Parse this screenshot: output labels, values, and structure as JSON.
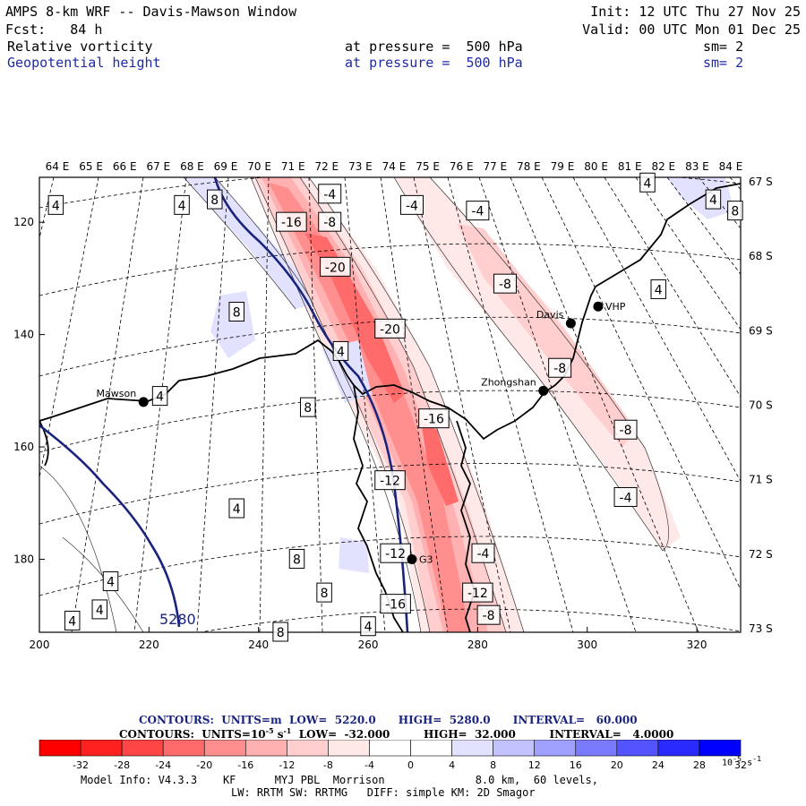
{
  "header": {
    "title": "AMPS 8-km WRF -- Davis-Mawson Window",
    "init": "Init: 12 UTC Thu 27 Nov 25",
    "fcst": "Fcst:   84 h",
    "valid": "Valid: 00 UTC Mon 01 Dec 25",
    "field1_name": "Relative vorticity",
    "field1_level": "at pressure =  500 hPa",
    "field1_sm": "sm= 2",
    "field2_name": "Geopotential height",
    "field2_level": "at pressure =  500 hPa",
    "field2_sm": "sm= 2"
  },
  "colors": {
    "frame": "#000000",
    "height_contour": "#1a237e",
    "coast": "#000000",
    "negative_strong": "#ff0000",
    "positive_strong": "#0000ff"
  },
  "chart_data": {
    "type": "contour-map",
    "title": "AMPS 8-km WRF -- Davis-Mawson Window",
    "xlim": [
      200,
      328
    ],
    "ylim": [
      112,
      193
    ],
    "x_ticks": [
      200,
      220,
      240,
      260,
      280,
      300,
      320
    ],
    "y_ticks": [
      120,
      140,
      160,
      180
    ],
    "longitude_labels": [
      "64 E",
      "65 E",
      "66 E",
      "67 E",
      "68 E",
      "69 E",
      "70 E",
      "71 E",
      "72 E",
      "73 E",
      "74 E",
      "75 E",
      "76 E",
      "77 E",
      "78 E",
      "79 E",
      "80 E",
      "81 E",
      "82 E",
      "83 E",
      "84 E"
    ],
    "latitude_labels": [
      "67 S",
      "68 S",
      "69 S",
      "70 S",
      "71 S",
      "72 S",
      "73 S"
    ],
    "stations": [
      {
        "name": "Mawson",
        "x": 219,
        "y": 152
      },
      {
        "name": "Davis",
        "x": 297,
        "y": 138
      },
      {
        "name": "VHP",
        "x": 302,
        "y": 135
      },
      {
        "name": "Zhongshan",
        "x": 292,
        "y": 150
      },
      {
        "name": "G3",
        "x": 268,
        "y": 180
      }
    ],
    "vorticity_labels": [
      {
        "text": "-4",
        "x": 253,
        "y": 115
      },
      {
        "text": "-16",
        "x": 246,
        "y": 120
      },
      {
        "text": "-8",
        "x": 253,
        "y": 120
      },
      {
        "text": "-20",
        "x": 254,
        "y": 128
      },
      {
        "text": "-20",
        "x": 264,
        "y": 139
      },
      {
        "text": "-16",
        "x": 272,
        "y": 155
      },
      {
        "text": "-12",
        "x": 264,
        "y": 166
      },
      {
        "text": "-4",
        "x": 268,
        "y": 117
      },
      {
        "text": "-4",
        "x": 280,
        "y": 118
      },
      {
        "text": "-8",
        "x": 285,
        "y": 131
      },
      {
        "text": "-8",
        "x": 295,
        "y": 146
      },
      {
        "text": "-8",
        "x": 307,
        "y": 157
      },
      {
        "text": "-4",
        "x": 307,
        "y": 169
      },
      {
        "text": "-16",
        "x": 265,
        "y": 188
      },
      {
        "text": "-12",
        "x": 280,
        "y": 186
      },
      {
        "text": "-8",
        "x": 282,
        "y": 190
      },
      {
        "text": "-4",
        "x": 281,
        "y": 179
      },
      {
        "text": "-12",
        "x": 265,
        "y": 179
      },
      {
        "text": "4",
        "x": 203,
        "y": 117
      },
      {
        "text": "4",
        "x": 226,
        "y": 117
      },
      {
        "text": "8",
        "x": 232,
        "y": 116
      },
      {
        "text": "8",
        "x": 236,
        "y": 136
      },
      {
        "text": "4",
        "x": 255,
        "y": 143
      },
      {
        "text": "4",
        "x": 222,
        "y": 151
      },
      {
        "text": "8",
        "x": 249,
        "y": 153
      },
      {
        "text": "4",
        "x": 236,
        "y": 171
      },
      {
        "text": "8",
        "x": 247,
        "y": 180
      },
      {
        "text": "4",
        "x": 213,
        "y": 184
      },
      {
        "text": "4",
        "x": 211,
        "y": 189
      },
      {
        "text": "4",
        "x": 206,
        "y": 191
      },
      {
        "text": "8",
        "x": 252,
        "y": 186
      },
      {
        "text": "8",
        "x": 244,
        "y": 193
      },
      {
        "text": "4",
        "x": 260,
        "y": 192
      },
      {
        "text": "4",
        "x": 311,
        "y": 113
      },
      {
        "text": "4",
        "x": 313,
        "y": 132
      },
      {
        "text": "4",
        "x": 323,
        "y": 116
      },
      {
        "text": "8",
        "x": 327,
        "y": 118
      }
    ],
    "height_label": "5280",
    "contours_height": {
      "units": "m",
      "low": 5220.0,
      "high": 5280.0,
      "interval": 60.0
    },
    "contours_vorticity": {
      "units": "10-5 s-1",
      "low": -32.0,
      "high": 32.0,
      "interval": 4.0
    },
    "colorbar_ticks": [
      "-32",
      "-28",
      "-24",
      "-20",
      "-16",
      "-12",
      "-8",
      "-4",
      "0",
      "4",
      "8",
      "12",
      "16",
      "20",
      "24",
      "28",
      "32"
    ],
    "colorbar_colors": [
      "#ff0000",
      "#ff2020",
      "#ff4545",
      "#ff6a6a",
      "#ff8e8e",
      "#ffb0b0",
      "#ffcfcf",
      "#ffe8e8",
      "#ffffff",
      "#ffffff",
      "#e2e2ff",
      "#c2c2ff",
      "#a0a0ff",
      "#7a7aff",
      "#5454ff",
      "#2a2aff",
      "#0000ff"
    ],
    "colorbar_unit": "10-5 s-1"
  },
  "footer": {
    "contours1_label": "CONTOURS:  UNITS=m  LOW=  5220.0      HIGH=  5280.0      INTERVAL=   60.000",
    "contours2_label": "CONTOURS:  UNITS=10",
    "contours2_rest": " s",
    "contours2_tail": "  LOW=  -32.000         HIGH=  32.000         INTERVAL=   4.0000",
    "exp1": "-5",
    "exp2": "-1",
    "unit_base": "10",
    "unit_exp": "-5",
    "unit_s": " s",
    "unit_s_exp": "-1",
    "model_info1": "Model Info: V4.3.3    KF      MYJ PBL  Morrison              8.0 km,  60 levels,",
    "model_info2": "LW: RRTM SW: RRTMG   DIFF: simple KM: 2D Smagor"
  }
}
